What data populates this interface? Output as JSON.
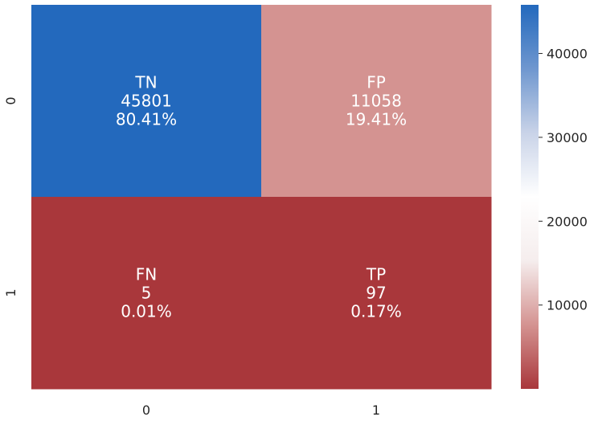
{
  "chart_data": {
    "type": "heatmap",
    "title": "",
    "xlabel": "",
    "ylabel": "",
    "x_categories": [
      "0",
      "1"
    ],
    "y_categories": [
      "0",
      "1"
    ],
    "cells": [
      {
        "row": 0,
        "col": 0,
        "label": "TN",
        "count": 45801,
        "count_text": "45801",
        "percent_text": "80.41%",
        "color": "#2369bd"
      },
      {
        "row": 0,
        "col": 1,
        "label": "FP",
        "count": 11058,
        "count_text": "11058",
        "percent_text": "19.41%",
        "color": "#d49391"
      },
      {
        "row": 1,
        "col": 0,
        "label": "FN",
        "count": 5,
        "count_text": "5",
        "percent_text": "0.01%",
        "color": "#a9373b"
      },
      {
        "row": 1,
        "col": 1,
        "label": "TP",
        "count": 97,
        "count_text": "97",
        "percent_text": "0.17%",
        "color": "#a9373b"
      }
    ],
    "colorbar": {
      "min": 5,
      "max": 45801,
      "ticks": [
        10000,
        20000,
        30000,
        40000
      ],
      "tick_labels": [
        "10000",
        "20000",
        "30000",
        "40000"
      ],
      "colormap": [
        "#a9373b",
        "#d49391",
        "#f5eded",
        "#ffffff",
        "#c9d3e8",
        "#6f97cf",
        "#2369bd"
      ]
    },
    "grid": false
  }
}
